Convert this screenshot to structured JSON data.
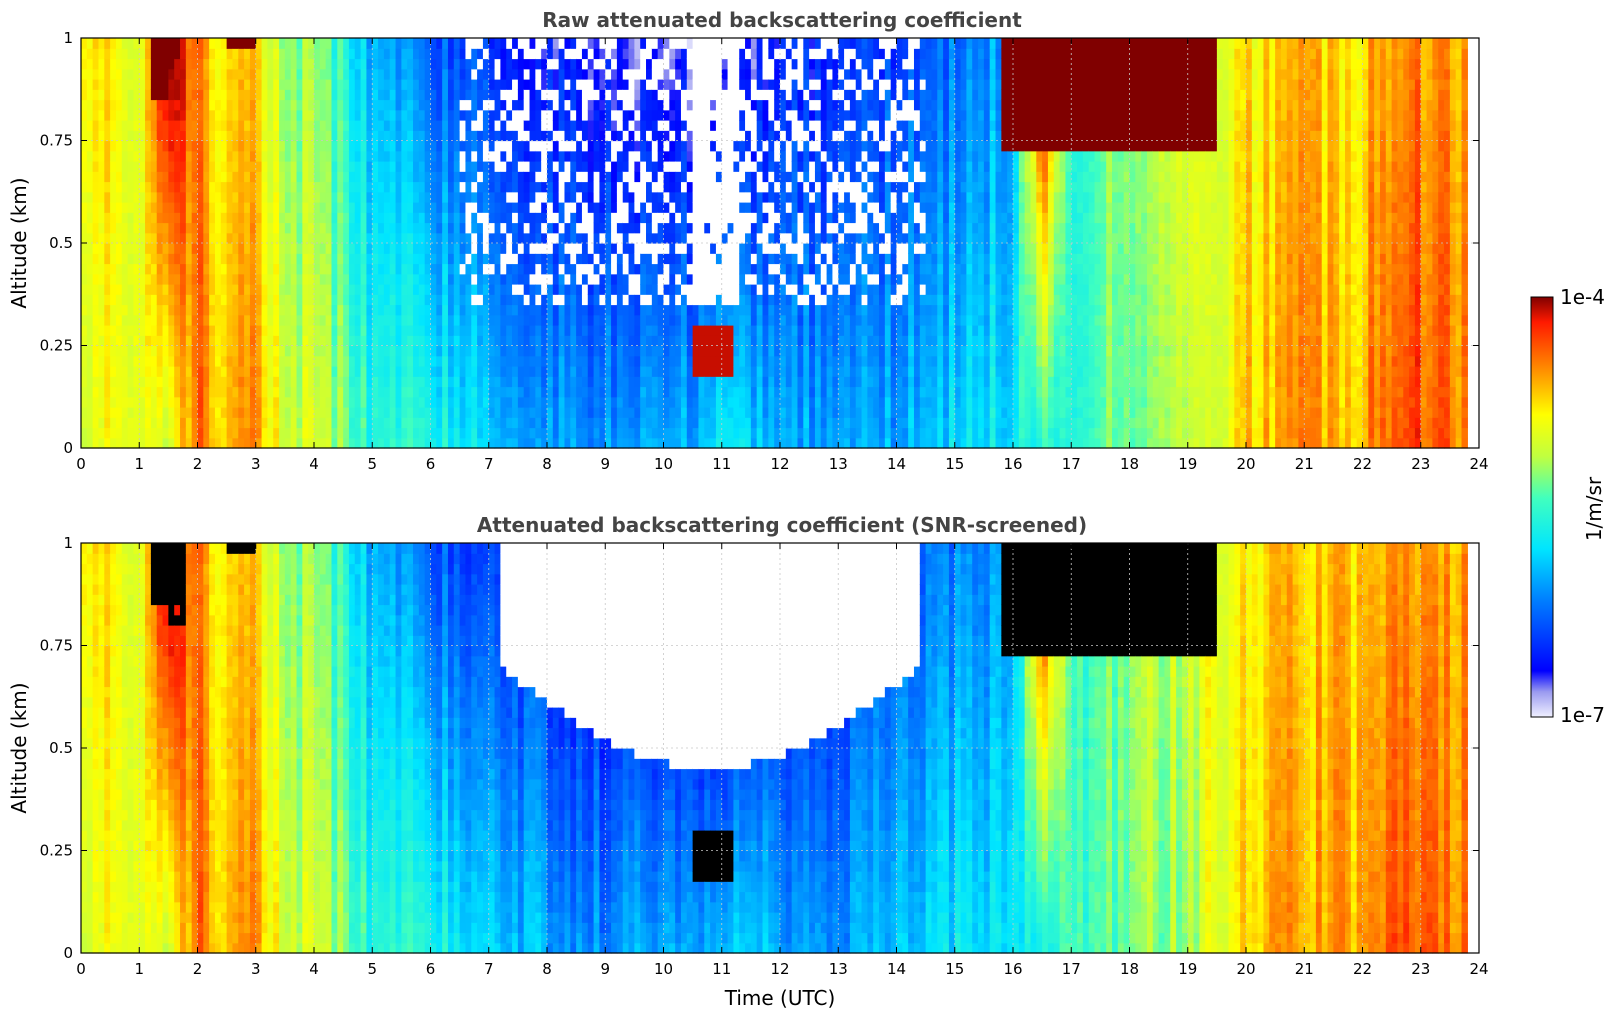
{
  "figure": {
    "colorbar": {
      "label": "1/m/sr",
      "max_label": "1e-4",
      "min_label": "1e-7",
      "colormap": "jet",
      "scale": "log"
    }
  },
  "chart_data": [
    {
      "type": "heatmap",
      "title": "Raw attenuated backscattering coefficient",
      "xlabel": "",
      "ylabel": "Altitude (km)",
      "xlim": [
        0,
        24
      ],
      "ylim": [
        0,
        1
      ],
      "x_ticks": [
        0,
        1,
        2,
        3,
        4,
        5,
        6,
        7,
        8,
        9,
        10,
        11,
        12,
        13,
        14,
        15,
        16,
        17,
        18,
        19,
        20,
        21,
        22,
        23,
        24
      ],
      "y_ticks": [
        0,
        0.25,
        0.5,
        0.75,
        1
      ],
      "y_tick_labels": [
        "0",
        "0.25",
        "0.5",
        "0.75",
        "1"
      ],
      "grid": true,
      "zscale": "log",
      "zlim": [
        1e-07,
        0.0001
      ],
      "time_segments_hours": [
        0,
        1,
        1.5,
        2,
        2.5,
        3,
        3.5,
        4,
        4.5,
        5,
        6,
        7,
        8,
        9,
        10,
        10.5,
        11,
        11.5,
        12,
        13,
        14,
        14.5,
        15,
        16,
        16.5,
        17,
        18,
        19,
        20,
        21,
        22,
        22.5,
        23,
        23.8
      ],
      "log10_backscatter_near_surface": [
        -5.0,
        -4.8,
        -5.2,
        -4.4,
        -4.8,
        -4.5,
        -5.0,
        -5.1,
        -5.3,
        -5.6,
        -5.6,
        -5.9,
        -6.0,
        -6.1,
        -6.0,
        -6.0,
        -5.8,
        -5.9,
        -6.0,
        -6.0,
        -6.0,
        -5.9,
        -5.8,
        -5.7,
        -5.6,
        -5.5,
        -5.3,
        -5.2,
        -4.7,
        -4.6,
        -4.6,
        -4.3,
        -4.3,
        -4.5
      ],
      "log10_backscatter_aloft": [
        -4.7,
        -4.9,
        -4.0,
        -4.5,
        -4.9,
        -4.7,
        -5.2,
        -5.3,
        -5.6,
        -6.0,
        -6.3,
        -6.5,
        -6.6,
        -6.7,
        -6.8,
        -6.8,
        -6.9,
        -6.8,
        -6.6,
        -6.5,
        -6.4,
        -6.3,
        -6.2,
        -6.0,
        -4.0,
        -5.5,
        -5.2,
        -5.0,
        -4.8,
        -4.7,
        -4.7,
        -4.5,
        -4.5,
        -4.6
      ],
      "cloud_features": [
        {
          "t_start": 1.2,
          "t_end": 1.5,
          "alt_base_km": 0.85,
          "log10_value": -4.0
        },
        {
          "t_start": 2.5,
          "t_end": 3.0,
          "alt_base_km": 0.98,
          "log10_value": -4.0
        },
        {
          "t_start": 15.8,
          "t_end": 19.5,
          "alt_base_km": 0.72,
          "log10_value": -4.0
        },
        {
          "t_start": 10.5,
          "t_end": 11.2,
          "alt_base_km": 0.17,
          "log10_value": -4.1
        }
      ]
    },
    {
      "type": "heatmap",
      "title": "Attenuated backscattering coefficient (SNR-screened)",
      "xlabel": "Time (UTC)",
      "ylabel": "Altitude (km)",
      "xlim": [
        0,
        24
      ],
      "ylim": [
        0,
        1
      ],
      "x_ticks": [
        0,
        1,
        2,
        3,
        4,
        5,
        6,
        7,
        8,
        9,
        10,
        11,
        12,
        13,
        14,
        15,
        16,
        17,
        18,
        19,
        20,
        21,
        22,
        23,
        24
      ],
      "y_ticks": [
        0,
        0.25,
        0.5,
        0.75,
        1
      ],
      "y_tick_labels": [
        "0",
        "0.25",
        "0.5",
        "0.75",
        "1"
      ],
      "grid": true,
      "zscale": "log",
      "zlim": [
        1e-07,
        0.0001
      ],
      "screened_region_hours": [
        7.2,
        14.4
      ],
      "screened_region_min_alt_km": 0.45
    }
  ]
}
